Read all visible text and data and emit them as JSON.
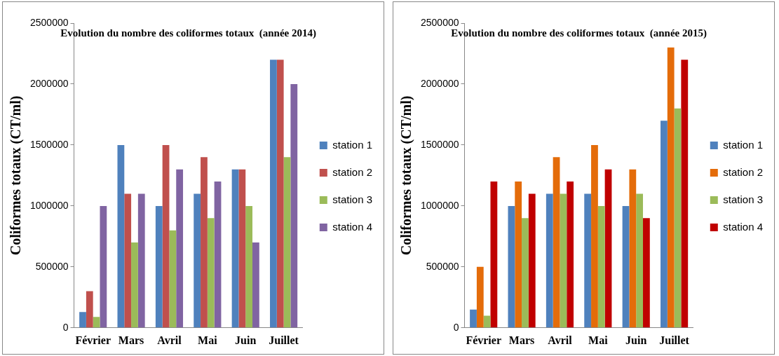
{
  "chart_data": [
    {
      "type": "bar",
      "title": "Evolution du nombre des coliformes totaux  (année 2014)",
      "ylabel": "Coliformes totaux (CT/ml)",
      "categories": [
        "Février",
        "Mars",
        "Avril",
        "Mai",
        "Juin",
        "Juillet"
      ],
      "series": [
        {
          "name": "station 1",
          "color": "#4f81bd",
          "values": [
            130000,
            1500000,
            1000000,
            1100000,
            1300000,
            2200000
          ]
        },
        {
          "name": "station 2",
          "color": "#c0504d",
          "values": [
            300000,
            1100000,
            1500000,
            1400000,
            1300000,
            2200000
          ]
        },
        {
          "name": "station 3",
          "color": "#9bbb59",
          "values": [
            90000,
            700000,
            800000,
            900000,
            1000000,
            1400000
          ]
        },
        {
          "name": "station 4",
          "color": "#8064a2",
          "values": [
            1000000,
            1100000,
            1300000,
            1200000,
            700000,
            2000000
          ]
        }
      ],
      "ylim": [
        0,
        2500000
      ],
      "yticks": [
        0,
        500000,
        1000000,
        1500000,
        2000000,
        2500000
      ],
      "grid": false,
      "legend": "right"
    },
    {
      "type": "bar",
      "title": "Evolution du nombre des coliformes totaux  (année 2015)",
      "ylabel": "Coliformes totaux (CT/ml)",
      "categories": [
        "Février",
        "Mars",
        "Avril",
        "Mai",
        "Juin",
        "Juillet"
      ],
      "series": [
        {
          "name": "station 1",
          "color": "#4f81bd",
          "values": [
            150000,
            1000000,
            1100000,
            1100000,
            1000000,
            1700000
          ]
        },
        {
          "name": "station 2",
          "color": "#e46c0a",
          "values": [
            500000,
            1200000,
            1400000,
            1500000,
            1300000,
            2300000
          ]
        },
        {
          "name": "station 3",
          "color": "#9bbb59",
          "values": [
            100000,
            900000,
            1100000,
            1000000,
            1100000,
            1800000
          ]
        },
        {
          "name": "station 4",
          "color": "#c00000",
          "values": [
            1200000,
            1100000,
            1200000,
            1300000,
            900000,
            2200000
          ]
        }
      ],
      "ylim": [
        0,
        2500000
      ],
      "yticks": [
        0,
        500000,
        1000000,
        1500000,
        2000000,
        2500000
      ],
      "grid": false,
      "legend": "right"
    }
  ]
}
